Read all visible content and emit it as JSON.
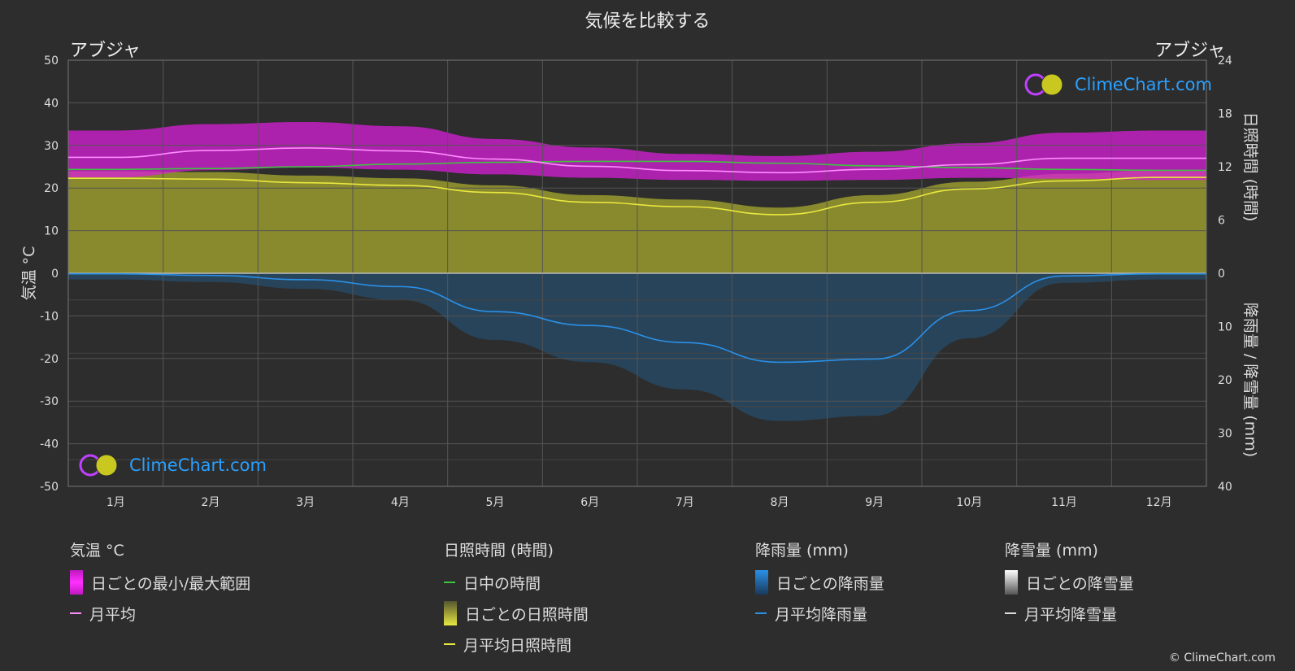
{
  "title": "気候を比較する",
  "location_left": "アブジャ",
  "location_right": "アブジャ",
  "brand": "ClimeChart.com",
  "copyright": "© ClimeChart.com",
  "legend": {
    "temperature": {
      "title": "気温 °C",
      "range_label": "日ごとの最小/最大範囲",
      "avg_label": "月平均"
    },
    "sunshine": {
      "title": "日照時間 (時間)",
      "daylight_label": "日中の時間",
      "daily_label": "日ごとの日照時間",
      "avg_label": "月平均日照時間"
    },
    "rain": {
      "title": "降雨量 (mm)",
      "daily_label": "日ごとの降雨量",
      "avg_label": "月平均降雨量"
    },
    "snow": {
      "title": "降雪量 (mm)",
      "daily_label": "日ごとの降雪量",
      "avg_label": "月平均降雪量"
    }
  },
  "colors": {
    "temp_range": "#d81fd8",
    "temp_avg": "#ff8cff",
    "daylight": "#3ec43e",
    "sunshine_fill": "#9a9a2e",
    "sunshine_avg": "#e8e840",
    "rain_fill": "#1f6fb0",
    "rain_avg": "#2a90e8",
    "snow_avg": "#dddddd"
  },
  "chart_data": {
    "type": "line",
    "categories": [
      "1月",
      "2月",
      "3月",
      "4月",
      "5月",
      "6月",
      "7月",
      "8月",
      "9月",
      "10月",
      "11月",
      "12月"
    ],
    "y_left": {
      "label": "気温 °C",
      "range": [
        -50,
        50
      ],
      "ticks": [
        50,
        40,
        30,
        20,
        10,
        0,
        -10,
        -20,
        -30,
        -40,
        -50
      ]
    },
    "y_right_top": {
      "label": "日照時間 (時間)",
      "range": [
        0,
        24
      ],
      "ticks": [
        24,
        18,
        12,
        6,
        0
      ]
    },
    "y_right_bottom": {
      "label": "降雨量 / 降雪量 (mm)",
      "range": [
        0,
        40
      ],
      "ticks": [
        10,
        20,
        30,
        40
      ]
    },
    "series": [
      {
        "name": "月平均",
        "axis": "temperature",
        "values": [
          27.2,
          28.8,
          29.4,
          28.7,
          26.8,
          25.1,
          24.1,
          23.6,
          24.4,
          25.5,
          27.0,
          27.0
        ]
      },
      {
        "name": "日ごとの最小/最大範囲",
        "axis": "temperature",
        "min": [
          22.5,
          24.2,
          24.8,
          24.3,
          23.2,
          22.4,
          21.9,
          21.7,
          21.9,
          22.4,
          22.2,
          21.9
        ],
        "max": [
          33.5,
          35.0,
          35.5,
          34.5,
          31.5,
          29.5,
          28.0,
          27.5,
          28.5,
          30.5,
          33.0,
          33.5
        ]
      },
      {
        "name": "日中の時間",
        "axis": "sunshine",
        "values": [
          11.7,
          11.8,
          12.0,
          12.3,
          12.5,
          12.6,
          12.6,
          12.4,
          12.1,
          11.9,
          11.7,
          11.6
        ]
      },
      {
        "name": "月平均日照時間",
        "axis": "sunshine",
        "values": [
          10.7,
          10.6,
          10.2,
          9.9,
          9.1,
          8.0,
          7.5,
          6.6,
          8.0,
          9.5,
          10.4,
          10.8
        ]
      },
      {
        "name": "月平均降雨量",
        "axis": "precipitation",
        "values": [
          0.1,
          0.4,
          1.2,
          2.5,
          7.2,
          9.8,
          13.0,
          16.7,
          16.1,
          7.0,
          0.5,
          0.1
        ]
      },
      {
        "name": "月平均降雪量",
        "axis": "precipitation",
        "values": [
          0,
          0,
          0,
          0,
          0,
          0,
          0,
          0,
          0,
          0,
          0,
          0
        ]
      }
    ]
  }
}
